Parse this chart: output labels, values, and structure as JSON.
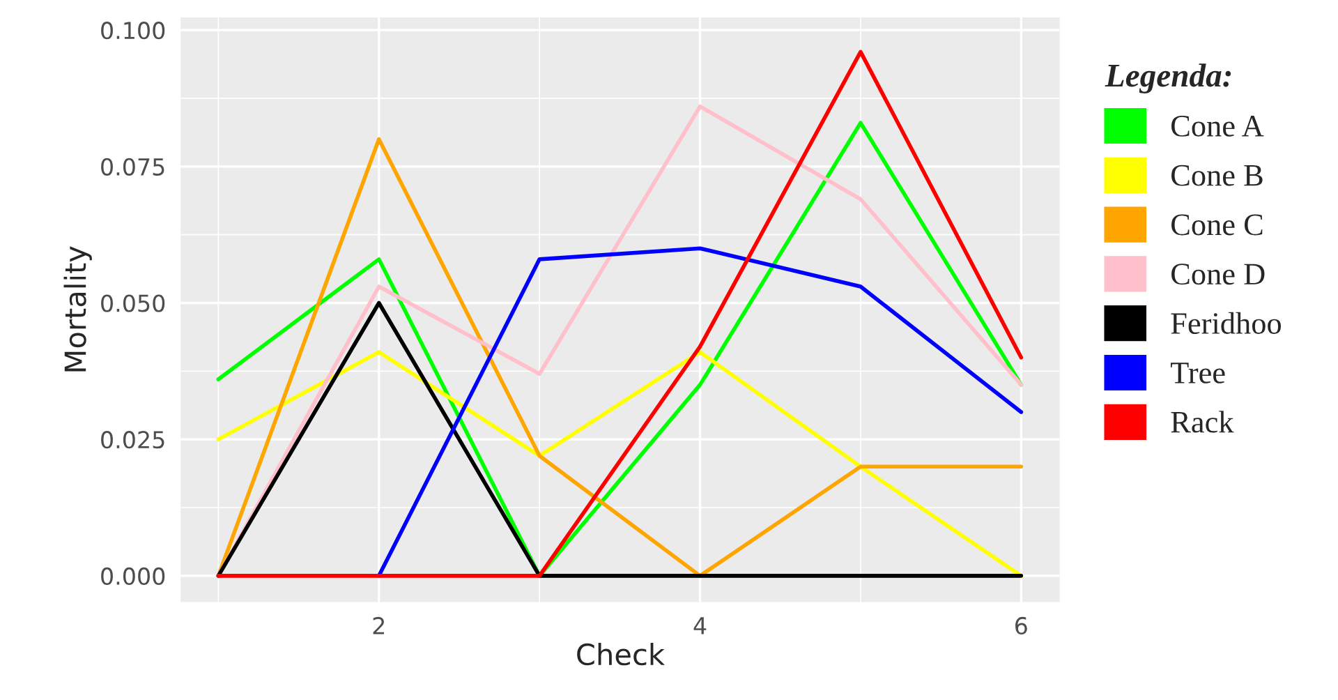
{
  "chart_data": {
    "type": "line",
    "xlabel": "Check",
    "ylabel": "Mortality",
    "legend_title": "Legenda:",
    "x": [
      1,
      2,
      3,
      4,
      5,
      6
    ],
    "series": [
      {
        "name": "Cone A",
        "color": "#00ff00",
        "values": [
          0.036,
          0.058,
          0,
          0.035,
          0.083,
          0.035
        ]
      },
      {
        "name": "Cone B",
        "color": "#ffff00",
        "values": [
          0.025,
          0.041,
          0.022,
          0.041,
          0.02,
          0
        ]
      },
      {
        "name": "Cone C",
        "color": "#ffa500",
        "values": [
          0,
          0.08,
          0.022,
          0,
          0.02,
          0.02
        ]
      },
      {
        "name": "Cone D",
        "color": "#ffc0cb",
        "values": [
          0,
          0.053,
          0.037,
          0.086,
          0.069,
          0.035
        ]
      },
      {
        "name": "Feridhoo",
        "color": "#000000",
        "values": [
          0,
          0.05,
          0,
          0,
          0,
          0
        ]
      },
      {
        "name": "Tree",
        "color": "#0000ff",
        "values": [
          null,
          0,
          0.058,
          0.06,
          0.053,
          0.03
        ]
      },
      {
        "name": "Rack",
        "color": "#ff0000",
        "values": [
          0,
          0,
          0,
          0.042,
          0.096,
          0.04
        ]
      }
    ],
    "xlim": [
      0.765,
      6.24
    ],
    "ylim": [
      -0.0048,
      0.1023
    ],
    "xticks": [
      2,
      4,
      6
    ],
    "yticks": [
      {
        "value": 0,
        "label": "0.000"
      },
      {
        "value": 0.025,
        "label": "0.025"
      },
      {
        "value": 0.05,
        "label": "0.050"
      },
      {
        "value": 0.075,
        "label": "0.075"
      },
      {
        "value": 0.1,
        "label": "0.100"
      }
    ],
    "grid": true,
    "legend": "right",
    "marker": "none",
    "line_style": "solid"
  }
}
